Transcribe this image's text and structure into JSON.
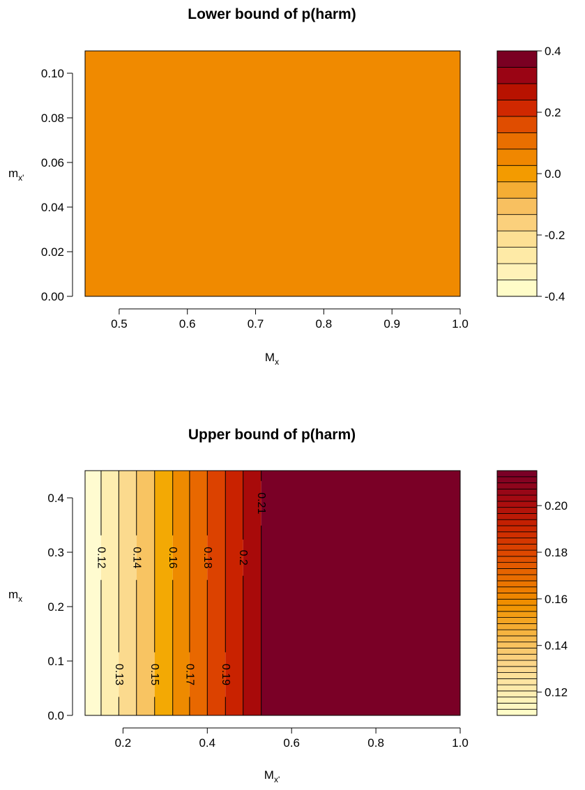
{
  "chart_data": [
    {
      "type": "heatmap",
      "title": "Lower bound of p(harm)",
      "xlabel": {
        "main": "M",
        "sub": "x"
      },
      "ylabel": {
        "main": "m",
        "sub": "x'"
      },
      "xlim": [
        0.45,
        1.0
      ],
      "ylim": [
        0.0,
        0.11
      ],
      "x_ticks": [
        "0.5",
        "0.6",
        "0.7",
        "0.8",
        "0.9",
        "1.0"
      ],
      "y_ticks": [
        "0.00",
        "0.02",
        "0.04",
        "0.06",
        "0.08",
        "0.10"
      ],
      "x_tick_values": [
        0.5,
        0.6,
        0.7,
        0.8,
        0.9,
        1.0
      ],
      "y_tick_values": [
        0.0,
        0.02,
        0.04,
        0.06,
        0.08,
        0.1
      ],
      "value": 0.0,
      "fill_color": "#f08a00",
      "legend": {
        "min": -0.4,
        "max": 0.4,
        "ticks": [
          "0.4",
          "0.2",
          "0.0",
          "-0.2",
          "-0.4"
        ],
        "tick_values": [
          0.4,
          0.2,
          0.0,
          -0.2,
          -0.4
        ],
        "colors": [
          "#fffcc8",
          "#fff2b8",
          "#feeaa6",
          "#fde094",
          "#fbd07c",
          "#f8c060",
          "#f5ad34",
          "#f39b00",
          "#f08700",
          "#e96f00",
          "#e04d00",
          "#d02800",
          "#b81200",
          "#9a0414",
          "#7a0022"
        ]
      }
    },
    {
      "type": "heatmap",
      "title": "Upper bound of p(harm)",
      "xlabel": {
        "main": "M",
        "sub": "x'"
      },
      "ylabel": {
        "main": "m",
        "sub": "x"
      },
      "xlim": [
        0.11,
        1.0
      ],
      "ylim": [
        0.0,
        0.45
      ],
      "x_ticks": [
        "0.2",
        "0.4",
        "0.6",
        "0.8",
        "1.0"
      ],
      "y_ticks": [
        "0.0",
        "0.1",
        "0.2",
        "0.3",
        "0.4"
      ],
      "x_tick_values": [
        0.2,
        0.4,
        0.6,
        0.8,
        1.0
      ],
      "y_tick_values": [
        0.0,
        0.1,
        0.2,
        0.3,
        0.4
      ],
      "bands": [
        {
          "x0": 0.11,
          "x1": 0.148,
          "color": "#fffbd0"
        },
        {
          "x0": 0.148,
          "x1": 0.19,
          "color": "#feeeb0"
        },
        {
          "x0": 0.19,
          "x1": 0.232,
          "color": "#fbda8e"
        },
        {
          "x0": 0.232,
          "x1": 0.275,
          "color": "#f8c462"
        },
        {
          "x0": 0.275,
          "x1": 0.318,
          "color": "#f3a904"
        },
        {
          "x0": 0.318,
          "x1": 0.358,
          "color": "#ee8a00"
        },
        {
          "x0": 0.358,
          "x1": 0.4,
          "color": "#e86800"
        },
        {
          "x0": 0.4,
          "x1": 0.443,
          "color": "#dc4200"
        },
        {
          "x0": 0.443,
          "x1": 0.485,
          "color": "#c92200"
        },
        {
          "x0": 0.485,
          "x1": 0.528,
          "color": "#a80a0a"
        },
        {
          "x0": 0.528,
          "x1": 1.0,
          "color": "#7a0026"
        }
      ],
      "contours": [
        {
          "level": "0.12",
          "x": 0.148,
          "label_y": 0.29
        },
        {
          "level": "0.13",
          "x": 0.19,
          "label_y": 0.075
        },
        {
          "level": "0.14",
          "x": 0.232,
          "label_y": 0.29
        },
        {
          "level": "0.15",
          "x": 0.275,
          "label_y": 0.075
        },
        {
          "level": "0.16",
          "x": 0.318,
          "label_y": 0.29
        },
        {
          "level": "0.17",
          "x": 0.358,
          "label_y": 0.075
        },
        {
          "level": "0.18",
          "x": 0.4,
          "label_y": 0.29
        },
        {
          "level": "0.19",
          "x": 0.443,
          "label_y": 0.075
        },
        {
          "level": "0.2",
          "x": 0.485,
          "label_y": 0.29
        },
        {
          "level": "0.21",
          "x": 0.528,
          "label_y": 0.39
        }
      ],
      "legend": {
        "min": 0.11,
        "max": 0.215,
        "ticks": [
          "0.20",
          "0.18",
          "0.16",
          "0.14",
          "0.12"
        ],
        "tick_values": [
          0.2,
          0.18,
          0.16,
          0.14,
          0.12
        ],
        "n_bands": 40,
        "color_stops": [
          "#fffcc8",
          "#fee8a8",
          "#fbd282",
          "#f6b440",
          "#f19300",
          "#ea7000",
          "#de4800",
          "#c92400",
          "#a60a10",
          "#7a0026"
        ]
      }
    }
  ]
}
